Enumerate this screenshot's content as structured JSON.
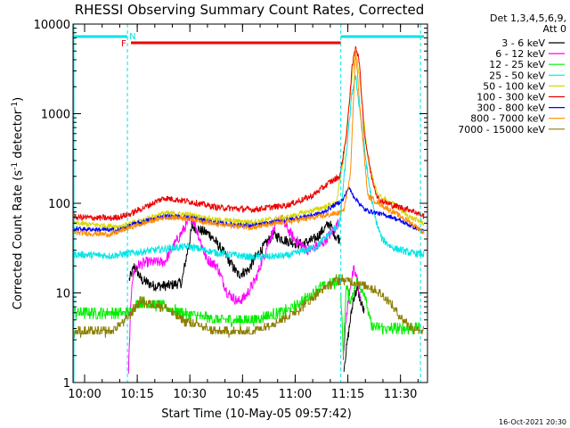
{
  "chart_data": {
    "type": "line",
    "title": "RHESSI Observing Summary Count Rates, Corrected",
    "xlabel": "Start Time (10-May-05 09:57:42)",
    "ylabel_main": "Corrected Count Rate (s",
    "ylabel_sup": "-1",
    "ylabel_rest": " detector",
    "ylabel_sup2": "-1",
    "ylabel_end": ")",
    "yscale": "log",
    "ylim": [
      1,
      10000
    ],
    "xlim_minutes_after_0957": [
      -1,
      100
    ],
    "x_ticks": [
      {
        "label": "10:00",
        "min": 2.3
      },
      {
        "label": "10:15",
        "min": 17.3
      },
      {
        "label": "10:30",
        "min": 32.3
      },
      {
        "label": "10:45",
        "min": 47.3
      },
      {
        "label": "11:00",
        "min": 62.3
      },
      {
        "label": "11:15",
        "min": 77.3
      },
      {
        "label": "11:30",
        "min": 92.3
      }
    ],
    "y_ticks": [
      {
        "label": "1",
        "value": 1
      },
      {
        "label": "10",
        "value": 10
      },
      {
        "label": "100",
        "value": 100
      },
      {
        "label": "1000",
        "value": 1000
      },
      {
        "label": "10000",
        "value": 10000
      }
    ],
    "legend_header": [
      "Det 1,3,4,5,6,9,",
      "Att 0"
    ],
    "legend_position": "right",
    "series": [
      {
        "name": "3 - 6 keV",
        "color": "#000000"
      },
      {
        "name": "6 - 12 keV",
        "color": "#ff00ff"
      },
      {
        "name": "12 - 25 keV",
        "color": "#00ee00"
      },
      {
        "name": "25 - 50 keV",
        "color": "#00e5e5"
      },
      {
        "name": "50 - 100 keV",
        "color": "#d8d800"
      },
      {
        "name": "100 - 300 keV",
        "color": "#ee0000"
      },
      {
        "name": "300 - 800 keV",
        "color": "#0000ff"
      },
      {
        "name": "800 - 7000 keV",
        "color": "#ff8c00"
      },
      {
        "name": "7000 - 15000 keV",
        "color": "#8b7d00"
      }
    ],
    "flags": {
      "night_label": "N",
      "flare_label": "F",
      "night_color": "#00e5e5",
      "flare_color": "#ee0000",
      "night_intervals_min": [
        [
          -1,
          14.5
        ],
        [
          75.3,
          99
        ]
      ],
      "flare_interval_min": [
        15.5,
        75.3
      ],
      "night_boundaries_min": [
        14.5,
        75.3,
        98
      ]
    },
    "timestamp": "16-Oct-2021 20:30"
  }
}
